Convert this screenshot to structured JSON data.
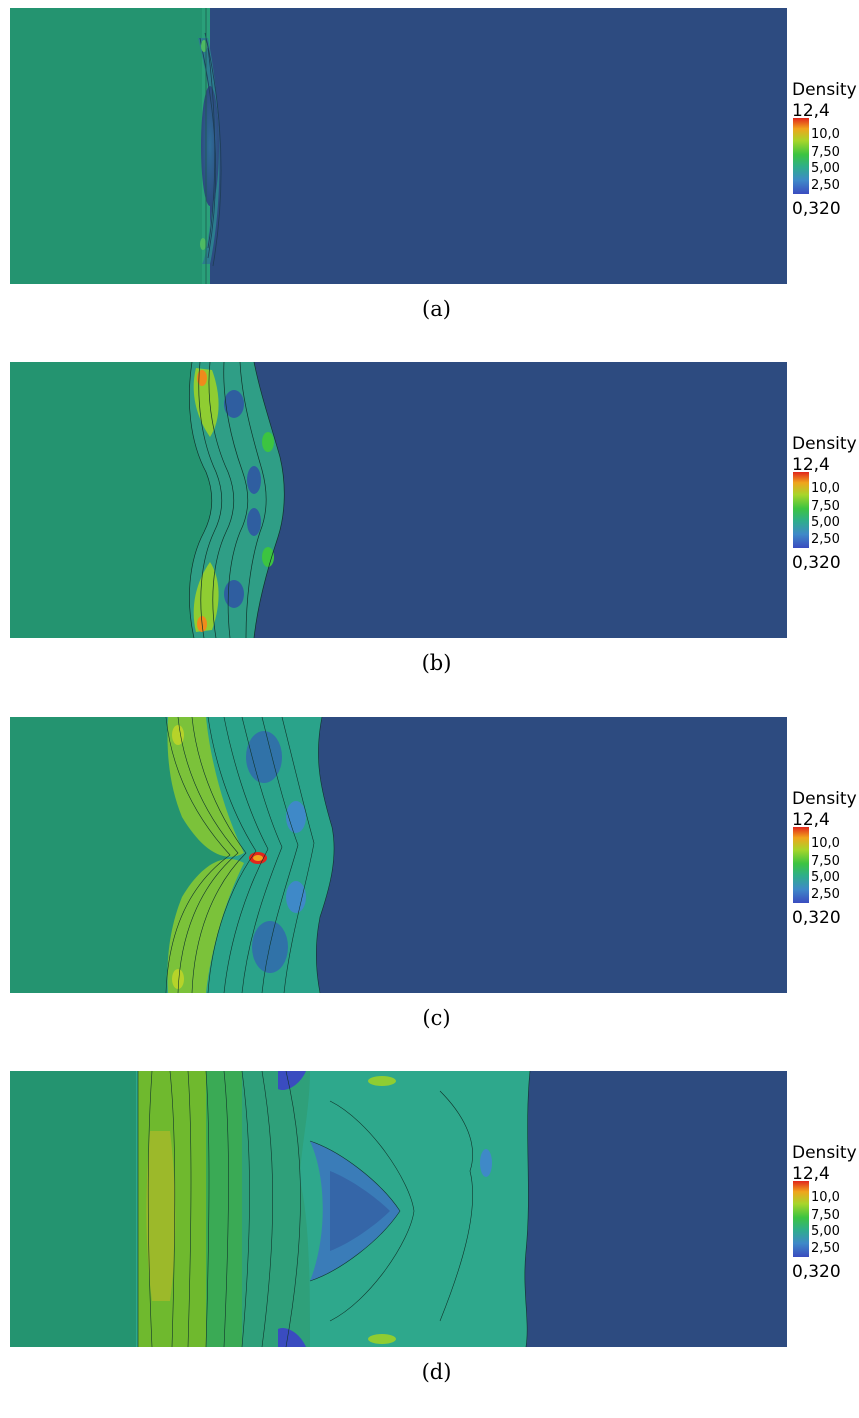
{
  "colors": {
    "left_state": "#249470",
    "right_state": "#2d4b80",
    "colormap": [
      "#3a4cc0",
      "#3f89c8",
      "#2fae8a",
      "#3cc441",
      "#a7d52a",
      "#f0a41c",
      "#e1261c"
    ]
  },
  "colorbar": {
    "title": "Density",
    "max_label": "12,4",
    "min_label": "0,320",
    "ticks": [
      "10,0",
      "7,50",
      "5,00",
      "2,50"
    ]
  },
  "panels": [
    {
      "caption": "(a)"
    },
    {
      "caption": "(b)"
    },
    {
      "caption": "(c)"
    },
    {
      "caption": "(d)"
    }
  ]
}
